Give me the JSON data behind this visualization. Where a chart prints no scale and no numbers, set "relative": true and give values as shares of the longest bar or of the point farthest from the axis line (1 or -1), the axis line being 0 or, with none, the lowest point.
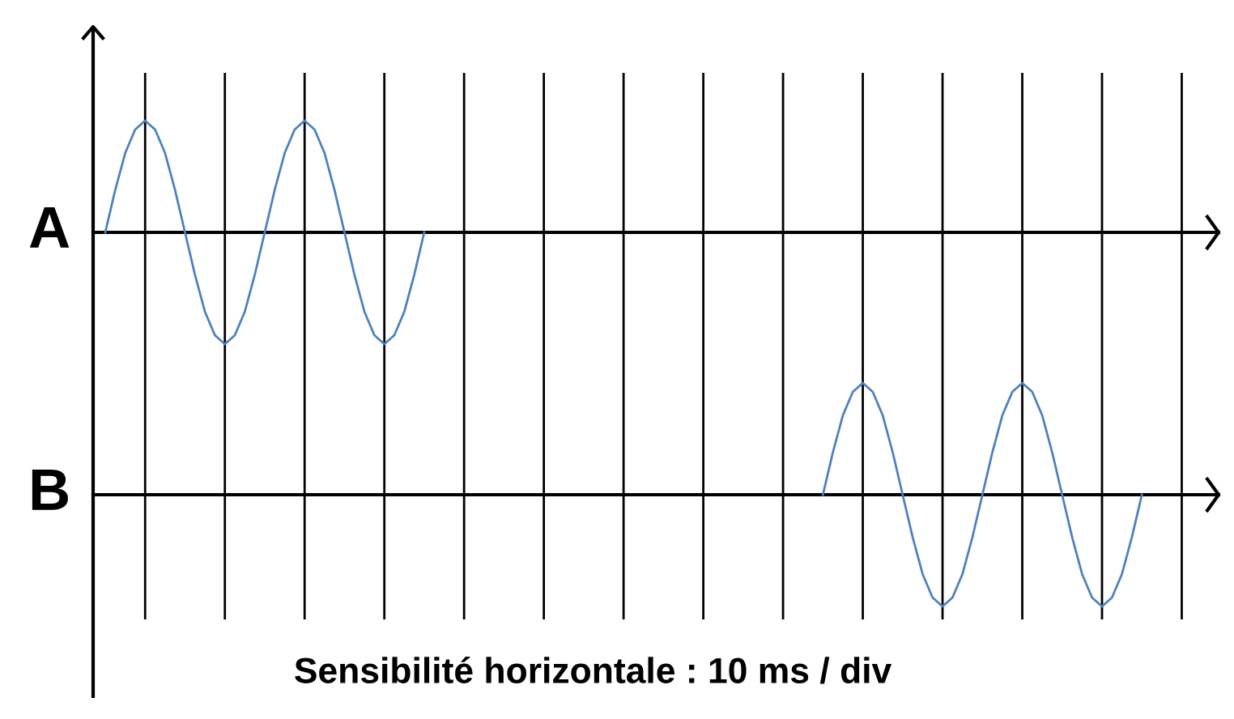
{
  "chart_data": [
    {
      "type": "line",
      "relative": true,
      "grid": "x",
      "legend": false,
      "marker": "none",
      "line_style": "solid",
      "categories": [
        null,
        null,
        null,
        null,
        null,
        null,
        null,
        null,
        null,
        null,
        null,
        null,
        null,
        null,
        null,
        null,
        null,
        null,
        null,
        null,
        null,
        null,
        null,
        null,
        null,
        null,
        null,
        null,
        null,
        null,
        null,
        null,
        null,
        null,
        null,
        null,
        null,
        null,
        null,
        null,
        null,
        null,
        null,
        null,
        null,
        null,
        null,
        null,
        null,
        null,
        null,
        null,
        null,
        null,
        null,
        null,
        null,
        null,
        null,
        null,
        null,
        null,
        null,
        null,
        null,
        null,
        null,
        null,
        null,
        null,
        null,
        null,
        null,
        null,
        null,
        null,
        null,
        null,
        null,
        null,
        null,
        null,
        null,
        null,
        null,
        null,
        null,
        null,
        null,
        null,
        null,
        null,
        null,
        null,
        null,
        null,
        null,
        null,
        null,
        null,
        null,
        null,
        null,
        null,
        null,
        null,
        null,
        null,
        null,
        null,
        null,
        null
      ],
      "series": [
        {
          "name": "A",
          "color": "#4f81bd",
          "values": [
            0,
            0.38,
            0.71,
            0.92,
            1,
            0.92,
            0.71,
            0.38,
            0,
            -0.38,
            -0.71,
            -0.92,
            -1,
            -0.92,
            -0.71,
            -0.38,
            0,
            0.38,
            0.71,
            0.92,
            1,
            0.92,
            0.71,
            0.38,
            0,
            -0.38,
            -0.71,
            -0.92,
            -1,
            -0.92,
            -0.71,
            -0.38,
            0,
            null,
            null,
            null,
            null,
            null,
            null,
            null,
            null,
            null,
            null,
            null,
            null,
            null,
            null,
            null,
            null,
            null,
            null,
            null,
            null,
            null,
            null,
            null,
            null,
            null,
            null,
            null,
            null,
            null,
            null,
            null,
            null,
            null,
            null,
            null,
            null,
            null,
            null,
            null,
            null,
            null,
            null,
            null,
            null,
            null,
            null,
            null,
            null,
            null,
            null,
            null,
            null,
            null,
            null,
            null,
            null,
            null,
            null,
            null,
            null,
            null,
            null,
            null,
            null,
            null,
            null,
            null,
            null,
            null,
            null,
            null,
            null,
            null,
            null,
            null,
            null,
            null,
            null,
            null
          ]
        }
      ]
    },
    {
      "type": "line",
      "relative": true,
      "grid": "x",
      "legend": false,
      "marker": "none",
      "line_style": "solid",
      "xlabel": "Sensibilité horizontale : 10 ms / div",
      "categories": [
        null,
        null,
        null,
        null,
        null,
        null,
        null,
        null,
        null,
        null,
        null,
        null,
        null,
        null,
        null,
        null,
        null,
        null,
        null,
        null,
        null,
        null,
        null,
        null,
        null,
        null,
        null,
        null,
        null,
        null,
        null,
        null,
        null,
        null,
        null,
        null,
        null,
        null,
        null,
        null,
        null,
        null,
        null,
        null,
        null,
        null,
        null,
        null,
        null,
        null,
        null,
        null,
        null,
        null,
        null,
        null,
        null,
        null,
        null,
        null,
        null,
        null,
        null,
        null,
        null,
        null,
        null,
        null,
        null,
        null,
        null,
        null,
        null,
        null,
        null,
        null,
        null,
        null,
        null,
        null,
        null,
        null,
        null,
        null,
        null,
        null,
        null,
        null,
        null,
        null,
        null,
        null,
        null,
        null,
        null,
        null,
        null,
        null,
        null,
        null,
        null,
        null,
        null,
        null,
        null,
        null,
        null,
        null,
        null,
        null,
        null,
        null
      ],
      "series": [
        {
          "name": "B",
          "color": "#4f81bd",
          "values": [
            null,
            null,
            null,
            null,
            null,
            null,
            null,
            null,
            null,
            null,
            null,
            null,
            null,
            null,
            null,
            null,
            null,
            null,
            null,
            null,
            null,
            null,
            null,
            null,
            null,
            null,
            null,
            null,
            null,
            null,
            null,
            null,
            null,
            null,
            null,
            null,
            null,
            null,
            null,
            null,
            null,
            null,
            null,
            null,
            null,
            null,
            null,
            null,
            null,
            null,
            null,
            null,
            null,
            null,
            null,
            null,
            null,
            null,
            null,
            null,
            null,
            null,
            null,
            null,
            null,
            null,
            null,
            null,
            null,
            null,
            null,
            null,
            0,
            0.38,
            0.71,
            0.92,
            1,
            0.92,
            0.71,
            0.38,
            0,
            -0.38,
            -0.71,
            -0.92,
            -1,
            -0.92,
            -0.71,
            -0.38,
            0,
            0.38,
            0.71,
            0.92,
            1,
            0.92,
            0.71,
            0.38,
            0,
            -0.38,
            -0.71,
            -0.92,
            -1,
            -0.92,
            -0.71,
            -0.38,
            0,
            null,
            null,
            null,
            null,
            null,
            null,
            null
          ]
        }
      ]
    }
  ]
}
